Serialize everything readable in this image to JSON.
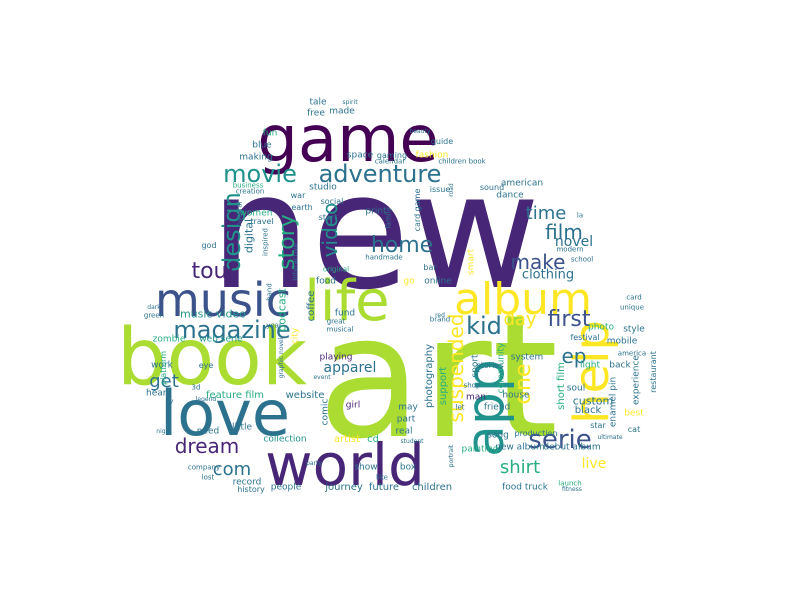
{
  "words": [
    {
      "text": "new",
      "color": "#482677"
    },
    {
      "text": "art",
      "color": "#aadc32"
    },
    {
      "text": "book",
      "color": "#aadc32"
    },
    {
      "text": "game",
      "color": "#440154"
    },
    {
      "text": "world",
      "color": "#482677"
    },
    {
      "text": "love",
      "color": "#2c728e"
    },
    {
      "text": "music",
      "color": "#3b528b"
    },
    {
      "text": "life",
      "color": "#aadc32"
    },
    {
      "text": "album",
      "color": "#fde725"
    },
    {
      "text": "app",
      "color": "#21918c"
    },
    {
      "text": "help",
      "color": "#fde725"
    },
    {
      "text": "movie",
      "color": "#21918c"
    },
    {
      "text": "adventure",
      "color": "#2c728e"
    },
    {
      "text": "design",
      "color": "#21918c"
    },
    {
      "text": "tour",
      "color": "#482677"
    },
    {
      "text": "magazine",
      "color": "#2c728e"
    },
    {
      "text": "home",
      "color": "#2c728e"
    },
    {
      "text": "story",
      "color": "#27ad81"
    },
    {
      "text": "video",
      "color": "#21918c"
    },
    {
      "text": "film",
      "color": "#2c728e"
    },
    {
      "text": "time",
      "color": "#2c728e"
    },
    {
      "text": "make",
      "color": "#3b528b"
    },
    {
      "text": "novel",
      "color": "#2c728e"
    },
    {
      "text": "clothing",
      "color": "#2c728e"
    },
    {
      "text": "kid",
      "color": "#2c728e"
    },
    {
      "text": "day",
      "color": "#fde725"
    },
    {
      "text": "first",
      "color": "#3b528b"
    },
    {
      "text": "suspended",
      "color": "#fde725"
    },
    {
      "text": "one",
      "color": "#fde725"
    },
    {
      "text": "ep",
      "color": "#2c728e"
    },
    {
      "text": "serie",
      "color": "#3b528b"
    },
    {
      "text": "shirt",
      "color": "#27ad81"
    },
    {
      "text": "live",
      "color": "#fde725"
    },
    {
      "text": "dream",
      "color": "#482677"
    },
    {
      "text": "get",
      "color": "#2c728e"
    },
    {
      "text": "com",
      "color": "#2c728e"
    },
    {
      "text": "apparel",
      "color": "#2c728e"
    },
    {
      "text": "music video",
      "color": "#21918c"
    },
    {
      "text": "feature film",
      "color": "#27ad81"
    },
    {
      "text": "website",
      "color": "#2c728e"
    },
    {
      "text": "collection",
      "color": "#21918c"
    },
    {
      "text": "artist",
      "color": "#fde725"
    },
    {
      "text": "cd",
      "color": "#27ad81"
    },
    {
      "text": "journey",
      "color": "#2c728e"
    },
    {
      "text": "future",
      "color": "#2c728e"
    },
    {
      "text": "children",
      "color": "#2c728e"
    },
    {
      "text": "people",
      "color": "#2c728e"
    },
    {
      "text": "record",
      "color": "#2c728e"
    },
    {
      "text": "little",
      "color": "#2c728e"
    },
    {
      "text": "need",
      "color": "#2c728e"
    },
    {
      "text": "heart",
      "color": "#2c728e"
    },
    {
      "text": "work",
      "color": "#2c728e"
    },
    {
      "text": "zombie",
      "color": "#27ad81"
    },
    {
      "text": "web serie",
      "color": "#21918c"
    },
    {
      "text": "mobile",
      "color": "#2c728e"
    },
    {
      "text": "custom",
      "color": "#2c728e"
    },
    {
      "text": "black",
      "color": "#2c728e"
    },
    {
      "text": "soul",
      "color": "#2c728e"
    },
    {
      "text": "best",
      "color": "#fde725"
    },
    {
      "text": "light",
      "color": "#27ad81"
    },
    {
      "text": "photo",
      "color": "#27ad81"
    },
    {
      "text": "enamel pin",
      "color": "#2c728e"
    },
    {
      "text": "experience",
      "color": "#2c728e"
    },
    {
      "text": "food truck",
      "color": "#2c728e"
    },
    {
      "text": "debut album",
      "color": "#2c728e"
    },
    {
      "text": "new album",
      "color": "#2c728e"
    },
    {
      "text": "song",
      "color": "#2c728e"
    },
    {
      "text": "painting",
      "color": "#27ad81"
    },
    {
      "text": "house",
      "color": "#2c728e"
    },
    {
      "text": "man",
      "color": "#482677"
    },
    {
      "text": "friend",
      "color": "#2c728e"
    },
    {
      "text": "system",
      "color": "#2c728e"
    },
    {
      "text": "dance",
      "color": "#2c728e"
    },
    {
      "text": "american",
      "color": "#2c728e"
    },
    {
      "text": "online",
      "color": "#2c728e"
    },
    {
      "text": "playing",
      "color": "#482677"
    },
    {
      "text": "girl",
      "color": "#482677"
    },
    {
      "text": "fund",
      "color": "#2c728e"
    },
    {
      "text": "food",
      "color": "#2c728e"
    },
    {
      "text": "studio",
      "color": "#2c728e"
    },
    {
      "text": "print",
      "color": "#2c728e"
    },
    {
      "text": "space",
      "color": "#2c728e"
    },
    {
      "text": "fashion",
      "color": "#fde725"
    },
    {
      "text": "making",
      "color": "#2c728e"
    },
    {
      "text": "blue",
      "color": "#2c728e"
    },
    {
      "text": "fun",
      "color": "#27ad81"
    },
    {
      "text": "free",
      "color": "#2c728e"
    },
    {
      "text": "made",
      "color": "#2c728e"
    },
    {
      "text": "tale",
      "color": "#2c728e"
    },
    {
      "text": "women",
      "color": "#27ad81"
    },
    {
      "text": "digital",
      "color": "#2c728e"
    },
    {
      "text": "podcast",
      "color": "#27ad81"
    },
    {
      "text": "coffee",
      "color": "#2c728e"
    },
    {
      "text": "photography",
      "color": "#2c728e"
    },
    {
      "text": "support",
      "color": "#27ad81"
    },
    {
      "text": "community",
      "color": "#27ad81"
    },
    {
      "text": "short film",
      "color": "#27ad81"
    },
    {
      "text": "show",
      "color": "#2c728e"
    },
    {
      "text": "box",
      "color": "#2c728e"
    },
    {
      "text": "real",
      "color": "#2c728e"
    },
    {
      "text": "part",
      "color": "#2c728e"
    },
    {
      "text": "may",
      "color": "#2c728e"
    },
    {
      "text": "comic",
      "color": "#2c728e"
    },
    {
      "text": "sport",
      "color": "#2c728e"
    },
    {
      "text": "smart",
      "color": "#fde725"
    },
    {
      "text": "city",
      "color": "#fde725"
    },
    {
      "text": "go",
      "color": "#fde725"
    },
    {
      "text": "style",
      "color": "#2c728e"
    },
    {
      "text": "back",
      "color": "#2c728e"
    },
    {
      "text": "production",
      "color": "#2c728e"
    },
    {
      "text": "stories",
      "color": "#2c728e"
    },
    {
      "text": "festival",
      "color": "#2c728e"
    },
    {
      "text": "restaurant",
      "color": "#2c728e"
    },
    {
      "text": "cat",
      "color": "#2c728e"
    },
    {
      "text": "star",
      "color": "#2c728e"
    },
    {
      "text": "earth",
      "color": "#2c728e"
    },
    {
      "text": "war",
      "color": "#2c728e"
    },
    {
      "text": "social",
      "color": "#2c728e"
    },
    {
      "text": "start",
      "color": "#2c728e"
    },
    {
      "text": "travel",
      "color": "#2c728e"
    },
    {
      "text": "guide",
      "color": "#2c728e"
    },
    {
      "text": "gaming",
      "color": "#2c728e"
    },
    {
      "text": "calendar",
      "color": "#2c728e"
    },
    {
      "text": "children book",
      "color": "#2c728e"
    },
    {
      "text": "issue",
      "color": "#2c728e"
    },
    {
      "text": "sound",
      "color": "#2c728e"
    },
    {
      "text": "card game",
      "color": "#2c728e"
    },
    {
      "text": "bar",
      "color": "#2c728e"
    },
    {
      "text": "school",
      "color": "#2c728e"
    },
    {
      "text": "la",
      "color": "#2c728e"
    },
    {
      "text": "modern",
      "color": "#2c728e"
    },
    {
      "text": "unique",
      "color": "#2c728e"
    },
    {
      "text": "card",
      "color": "#2c728e"
    },
    {
      "text": "history",
      "color": "#2c728e"
    },
    {
      "text": "lost",
      "color": "#2c728e"
    },
    {
      "text": "company",
      "color": "#2c728e"
    },
    {
      "text": "eye",
      "color": "#2c728e"
    },
    {
      "text": "platform",
      "color": "#27ad81"
    },
    {
      "text": "god",
      "color": "#2c728e"
    },
    {
      "text": "green",
      "color": "#2c728e"
    },
    {
      "text": "tv",
      "color": "#2c728e"
    },
    {
      "text": "year",
      "color": "#2c728e"
    },
    {
      "text": "musical",
      "color": "#2c728e"
    },
    {
      "text": "great",
      "color": "#2c728e"
    },
    {
      "text": "family",
      "color": "#2c728e"
    },
    {
      "text": "business",
      "color": "#27ad81"
    },
    {
      "text": "natural",
      "color": "#2c728e"
    },
    {
      "text": "inspired",
      "color": "#2c728e"
    },
    {
      "text": "creation",
      "color": "#2c728e"
    },
    {
      "text": "beauty",
      "color": "#2c728e"
    },
    {
      "text": "shop",
      "color": "#2c728e"
    },
    {
      "text": "let",
      "color": "#2c728e"
    },
    {
      "text": "like",
      "color": "#2c728e"
    },
    {
      "text": "hand",
      "color": "#2c728e"
    },
    {
      "text": "america",
      "color": "#2c728e"
    },
    {
      "text": "launch",
      "color": "#27ad81"
    },
    {
      "text": "original",
      "color": "#27ad81"
    },
    {
      "text": "party",
      "color": "#2c728e"
    },
    {
      "text": "graphic novel",
      "color": "#2c728e"
    },
    {
      "text": "brand",
      "color": "#2c728e"
    },
    {
      "text": "interactive",
      "color": "#2c728e"
    },
    {
      "text": "handmade",
      "color": "#2c728e"
    },
    {
      "text": "red",
      "color": "#2c728e"
    },
    {
      "text": "student",
      "color": "#2c728e"
    },
    {
      "text": "portrait",
      "color": "#2c728e"
    },
    {
      "text": "legend",
      "color": "#2c728e"
    },
    {
      "text": "fitness",
      "color": "#2c728e"
    },
    {
      "text": "event",
      "color": "#2c728e"
    },
    {
      "text": "night",
      "color": "#2c728e"
    },
    {
      "text": "ultimate",
      "color": "#2c728e"
    },
    {
      "text": "spirit",
      "color": "#2c728e"
    },
    {
      "text": "dark",
      "color": "#2c728e"
    },
    {
      "text": "road",
      "color": "#2c728e"
    },
    {
      "text": "3d",
      "color": "#2c728e"
    }
  ]
}
